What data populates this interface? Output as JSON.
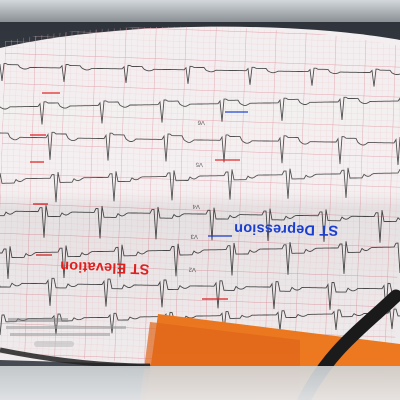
{
  "annotations": {
    "st_elevation": {
      "text": "ST Elevation",
      "color": "#e02020"
    },
    "st_depression": {
      "text": "ST Depression",
      "color": "#1a3fd0"
    }
  },
  "colors": {
    "paper": "#f3eff0",
    "grid_fine": "#f1c9cf",
    "grid_major": "#e4a1ab",
    "trace": "#4a4a4a",
    "folder": "#f07a20",
    "cable": "#1b1b1b"
  }
}
